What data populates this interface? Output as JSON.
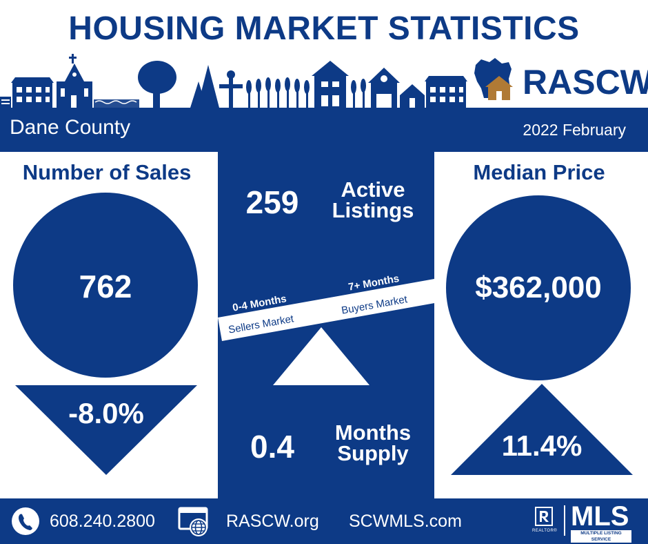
{
  "header": {
    "title": "HOUSING MARKET STATISTICS",
    "brand": "RASCW"
  },
  "banner": {
    "county": "Dane County",
    "period": "2022 February"
  },
  "sales": {
    "heading": "Number of Sales",
    "value": "762",
    "change": "-8.0%",
    "direction": "down"
  },
  "listings": {
    "value": "259",
    "label_line1": "Active",
    "label_line2": "Listings"
  },
  "scale": {
    "left_label": "0-4 Months",
    "left_sub": "Sellers Market",
    "right_label": "7+ Months",
    "right_sub": "Buyers Market"
  },
  "supply": {
    "value": "0.4",
    "label_line1": "Months",
    "label_line2": "Supply"
  },
  "price": {
    "heading": "Median Price",
    "value": "$362,000",
    "change": "11.4%",
    "direction": "up"
  },
  "footer": {
    "phone": "608.240.2800",
    "site1": "RASCW.org",
    "site2": "SCWMLS.com",
    "mls_label": "MLS",
    "mls_sub": "MULTIPLE LISTING SERVICE",
    "realtor_sub": "REALTOR®"
  },
  "colors": {
    "navy": "#0d3a86",
    "house_brown": "#b07a35"
  },
  "icons": {
    "phone": "phone-icon",
    "web": "globe-icon",
    "realtor": "realtor-logo-icon",
    "state": "wisconsin-map-icon"
  }
}
